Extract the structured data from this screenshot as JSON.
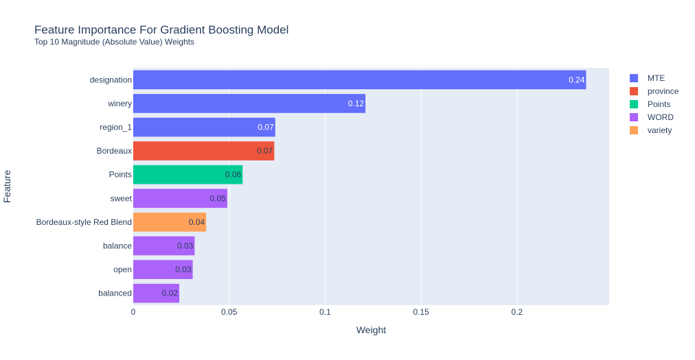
{
  "chart_data": {
    "type": "bar",
    "orientation": "horizontal",
    "title": "Feature Importance For Gradient Boosting Model",
    "subtitle": "Top 10 Magnitude (Absolute Value) Weights",
    "xlabel": "Weight",
    "ylabel": "Feature",
    "xlim": [
      0,
      0.248
    ],
    "xticks": [
      0,
      0.05,
      0.1,
      0.15,
      0.2
    ],
    "xtick_labels": [
      "0",
      "0.05",
      "0.1",
      "0.15",
      "0.2"
    ],
    "grid": true,
    "legend_position": "top-right",
    "legend": [
      {
        "name": "MTE",
        "color": "#636efa"
      },
      {
        "name": "province",
        "color": "#ef553b"
      },
      {
        "name": "Points",
        "color": "#00cc96"
      },
      {
        "name": "WORD",
        "color": "#ab63fa"
      },
      {
        "name": "variety",
        "color": "#ffa15a"
      }
    ],
    "bars": [
      {
        "feature": "designation",
        "value": 0.236,
        "label": "0.24",
        "group": "MTE",
        "label_color": "#ffffff"
      },
      {
        "feature": "winery",
        "value": 0.121,
        "label": "0.12",
        "group": "MTE",
        "label_color": "#ffffff"
      },
      {
        "feature": "region_1",
        "value": 0.074,
        "label": "0.07",
        "group": "MTE",
        "label_color": "#ffffff"
      },
      {
        "feature": "Bordeaux",
        "value": 0.0735,
        "label": "0.07",
        "group": "province",
        "label_color": "#2a3f5f"
      },
      {
        "feature": "Points",
        "value": 0.057,
        "label": "0.06",
        "group": "Points",
        "label_color": "#2a3f5f"
      },
      {
        "feature": "sweet",
        "value": 0.049,
        "label": "0.05",
        "group": "WORD",
        "label_color": "#2a3f5f"
      },
      {
        "feature": "Bordeaux-style Red Blend",
        "value": 0.038,
        "label": "0.04",
        "group": "variety",
        "label_color": "#2a3f5f"
      },
      {
        "feature": "balance",
        "value": 0.032,
        "label": "0.03",
        "group": "WORD",
        "label_color": "#2a3f5f"
      },
      {
        "feature": "open",
        "value": 0.031,
        "label": "0.03",
        "group": "WORD",
        "label_color": "#2a3f5f"
      },
      {
        "feature": "balanced",
        "value": 0.024,
        "label": "0.02",
        "group": "WORD",
        "label_color": "#2a3f5f"
      }
    ]
  }
}
